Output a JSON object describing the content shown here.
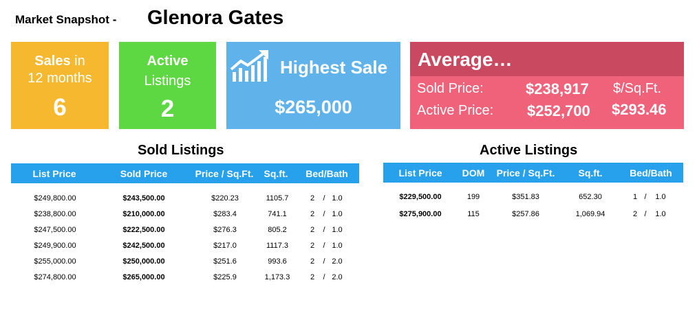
{
  "header": {
    "prefix": "Market Snapshot -",
    "name": "Glenora Gates"
  },
  "tiles": {
    "sales": {
      "label_bold": "Sales",
      "label_rest": " in",
      "label_line2": "12 months",
      "value": "6"
    },
    "active": {
      "label_line1": "Active",
      "label_line2": "Listings",
      "value": "2"
    },
    "highest": {
      "title": "Highest Sale",
      "value": "$265,000",
      "icon": "chart-trend-up-icon"
    },
    "average": {
      "title": "Average…",
      "sold_label": "Sold Price:",
      "sold_value": "$238,917",
      "active_label": "Active Price:",
      "active_value": "$252,700",
      "per_sqft_label": "$/Sq.Ft.",
      "per_sqft_value": "$293.46"
    }
  },
  "sold": {
    "title": "Sold Listings",
    "columns": [
      "List Price",
      "Sold Price",
      "Price / Sq.Ft.",
      "Sq.ft.",
      "Bed/Bath"
    ],
    "rows": [
      {
        "list": "$249,800.00",
        "sold": "$243,500.00",
        "ppsf": "$220.23",
        "sqft": "1105.7",
        "bed": "2",
        "bath": "1.0"
      },
      {
        "list": "$238,800.00",
        "sold": "$210,000.00",
        "ppsf": "$283.4",
        "sqft": "741.1",
        "bed": "2",
        "bath": "1.0"
      },
      {
        "list": "$247,500.00",
        "sold": "$222,500.00",
        "ppsf": "$276.3",
        "sqft": "805.2",
        "bed": "2",
        "bath": "1.0"
      },
      {
        "list": "$249,900.00",
        "sold": "$242,500.00",
        "ppsf": "$217.0",
        "sqft": "1117.3",
        "bed": "2",
        "bath": "1.0"
      },
      {
        "list": "$255,000.00",
        "sold": "$250,000.00",
        "ppsf": "$251.6",
        "sqft": "993.6",
        "bed": "2",
        "bath": "2.0"
      },
      {
        "list": "$274,800.00",
        "sold": "$265,000.00",
        "ppsf": "$225.9",
        "sqft": "1,173.3",
        "bed": "2",
        "bath": "2.0"
      }
    ]
  },
  "active": {
    "title": "Active Listings",
    "columns": [
      "List Price",
      "DOM",
      "Price / Sq.Ft.",
      "Sq.ft.",
      "Bed/Bath"
    ],
    "rows": [
      {
        "list": "$229,500.00",
        "dom": "199",
        "ppsf": "$351.83",
        "sqft": "652.30",
        "bed": "1",
        "bath": "1.0"
      },
      {
        "list": "$275,900.00",
        "dom": "115",
        "ppsf": "$257.86",
        "sqft": "1,069.94",
        "bed": "2",
        "bath": "1.0"
      }
    ]
  },
  "colors": {
    "sales_tile": "#f5b82e",
    "active_tile": "#5ed842",
    "highest_tile": "#5fb3ea",
    "average_tile": "#f0617a",
    "average_header": "#c94a60",
    "table_header": "#28a1ed"
  }
}
